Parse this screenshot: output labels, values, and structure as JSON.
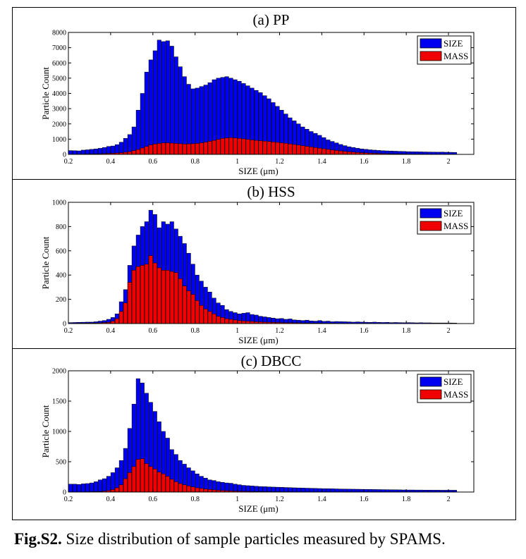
{
  "figure": {
    "caption_label": "Fig.S2.",
    "caption_text": " Size distribution of sample particles measured by SPAMS."
  },
  "colors": {
    "size": "#0000f0",
    "mass": "#f00000",
    "edge": "#000000"
  },
  "chart_data": [
    {
      "type": "bar",
      "title": "(a) PP",
      "xlabel": "SIZE (μm)",
      "ylabel": "Particle Count",
      "xlim": [
        0.2,
        2.12
      ],
      "ylim": [
        0,
        8000
      ],
      "xticks": [
        "0.2",
        "0.4",
        "0.6",
        "0.8",
        "1",
        "1.2",
        "1.4",
        "1.6",
        "1.8",
        "2"
      ],
      "yticks": [
        "0",
        "1000",
        "2000",
        "3000",
        "4000",
        "5000",
        "6000",
        "7000",
        "8000"
      ],
      "legend_position": "top-right",
      "x_start": 0.2,
      "x_step": 0.02,
      "series": [
        {
          "name": "SIZE",
          "values": [
            250,
            240,
            230,
            280,
            300,
            330,
            360,
            400,
            450,
            520,
            550,
            640,
            800,
            1050,
            1300,
            1800,
            2900,
            4000,
            5400,
            6200,
            6800,
            7500,
            7400,
            7450,
            7100,
            6400,
            5750,
            5100,
            4600,
            4300,
            4350,
            4450,
            4550,
            4700,
            4900,
            5000,
            5050,
            5100,
            5000,
            4900,
            4800,
            4650,
            4500,
            4350,
            4200,
            4050,
            3850,
            3650,
            3400,
            3150,
            2900,
            2650,
            2400,
            2200,
            2000,
            1800,
            1650,
            1500,
            1380,
            1250,
            1100,
            950,
            850,
            750,
            650,
            570,
            500,
            450,
            400,
            360,
            330,
            300,
            280,
            260,
            240,
            230,
            220,
            210,
            200,
            190,
            180,
            175,
            170,
            165,
            160,
            155,
            150,
            145,
            150,
            140,
            135,
            130
          ]
        },
        {
          "name": "MASS",
          "values": [
            10,
            12,
            15,
            20,
            25,
            30,
            35,
            40,
            50,
            60,
            70,
            90,
            110,
            140,
            180,
            250,
            320,
            420,
            520,
            620,
            680,
            720,
            750,
            760,
            740,
            720,
            700,
            680,
            690,
            700,
            720,
            760,
            800,
            860,
            920,
            980,
            1050,
            1080,
            1100,
            1080,
            1050,
            1020,
            980,
            950,
            920,
            900,
            870,
            850,
            820,
            790,
            760,
            730,
            690,
            650,
            610,
            570,
            530,
            490,
            450,
            410,
            370,
            330,
            290,
            260,
            230,
            200,
            170,
            150,
            130,
            110,
            95,
            80,
            70,
            60,
            50,
            45,
            40,
            35,
            30,
            25,
            22,
            20,
            18,
            16,
            14,
            12,
            11,
            10,
            9,
            8,
            7
          ]
        }
      ]
    },
    {
      "type": "bar",
      "title": "(b) HSS",
      "xlabel": "SIZE (μm)",
      "ylabel": "Particle Count",
      "xlim": [
        0.2,
        2.12
      ],
      "ylim": [
        0,
        1000
      ],
      "xticks": [
        "0.2",
        "0.4",
        "0.6",
        "0.8",
        "1",
        "1.2",
        "1.4",
        "1.6",
        "1.8",
        "2"
      ],
      "yticks": [
        "0",
        "200",
        "400",
        "600",
        "800",
        "1000"
      ],
      "legend_position": "top-right",
      "x_start": 0.2,
      "x_step": 0.02,
      "series": [
        {
          "name": "SIZE",
          "values": [
            8,
            9,
            10,
            11,
            12,
            12,
            15,
            20,
            25,
            35,
            50,
            80,
            180,
            280,
            480,
            640,
            730,
            800,
            840,
            935,
            900,
            790,
            840,
            820,
            840,
            780,
            720,
            660,
            580,
            490,
            400,
            350,
            300,
            260,
            210,
            170,
            150,
            115,
            100,
            90,
            80,
            85,
            90,
            75,
            70,
            60,
            55,
            50,
            45,
            40,
            42,
            35,
            38,
            30,
            28,
            25,
            28,
            22,
            20,
            25,
            18,
            20,
            15,
            17,
            16,
            15,
            14,
            12,
            14,
            12,
            11,
            10,
            12,
            10,
            9,
            10,
            8,
            9,
            8,
            7,
            8,
            7,
            6,
            7,
            6,
            6,
            5,
            5,
            5,
            5,
            5,
            4
          ]
        },
        {
          "name": "MASS",
          "values": [
            2,
            2,
            3,
            3,
            4,
            4,
            5,
            6,
            8,
            10,
            20,
            40,
            100,
            170,
            340,
            440,
            470,
            480,
            490,
            560,
            500,
            460,
            440,
            440,
            430,
            420,
            370,
            310,
            270,
            240,
            190,
            150,
            120,
            100,
            80,
            60,
            50,
            40,
            35,
            30,
            25,
            22,
            20,
            18,
            15,
            14,
            12,
            11,
            10,
            9,
            8,
            7,
            7,
            6,
            6,
            5,
            5,
            4,
            4,
            4,
            3,
            3,
            3,
            3,
            2,
            2,
            2,
            2,
            2,
            2,
            2,
            2,
            1,
            1,
            1,
            1,
            1,
            1,
            1,
            1,
            1,
            1,
            1,
            1,
            1,
            1,
            1,
            1,
            1,
            1,
            1,
            1
          ]
        }
      ]
    },
    {
      "type": "bar",
      "title": "(c) DBCC",
      "xlabel": "SIZE (μm)",
      "ylabel": "Particle Count",
      "xlim": [
        0.2,
        2.12
      ],
      "ylim": [
        0,
        2000
      ],
      "xticks": [
        "0.2",
        "0.4",
        "0.6",
        "0.8",
        "1",
        "1.2",
        "1.4",
        "1.6",
        "1.8",
        "2"
      ],
      "yticks": [
        "0",
        "500",
        "1000",
        "1500",
        "2000"
      ],
      "legend_position": "top-right",
      "x_start": 0.2,
      "x_step": 0.02,
      "series": [
        {
          "name": "SIZE",
          "values": [
            130,
            130,
            125,
            135,
            140,
            150,
            170,
            200,
            220,
            260,
            320,
            400,
            520,
            720,
            1050,
            1450,
            1870,
            1800,
            1630,
            1480,
            1330,
            1160,
            1000,
            890,
            700,
            620,
            520,
            460,
            400,
            350,
            300,
            260,
            230,
            200,
            190,
            170,
            160,
            150,
            145,
            130,
            120,
            110,
            105,
            100,
            95,
            90,
            88,
            85,
            82,
            80,
            78,
            75,
            73,
            70,
            68,
            66,
            64,
            62,
            60,
            58,
            56,
            55,
            54,
            52,
            50,
            49,
            48,
            47,
            46,
            45,
            44,
            43,
            42,
            41,
            40,
            39,
            38,
            37,
            36,
            35,
            34,
            34,
            33,
            33,
            32,
            32,
            31,
            31,
            30,
            30,
            30,
            30
          ]
        },
        {
          "name": "MASS",
          "values": [
            3,
            3,
            3,
            4,
            5,
            6,
            8,
            10,
            15,
            25,
            40,
            70,
            120,
            220,
            320,
            420,
            540,
            550,
            470,
            420,
            380,
            330,
            300,
            260,
            210,
            170,
            140,
            120,
            100,
            85,
            70,
            60,
            50,
            42,
            36,
            30,
            26,
            22,
            19,
            16,
            14,
            12,
            11,
            10,
            9,
            8,
            7,
            7,
            6,
            6,
            5,
            5,
            5,
            4,
            4,
            4,
            3,
            3,
            3,
            3,
            3,
            2,
            2,
            2,
            2,
            2,
            2,
            2,
            2,
            2,
            2,
            2,
            1,
            1,
            1,
            1,
            1,
            1,
            1,
            1,
            1,
            1,
            1,
            1,
            1,
            1,
            1,
            1,
            1,
            1,
            1,
            1
          ]
        }
      ]
    }
  ]
}
